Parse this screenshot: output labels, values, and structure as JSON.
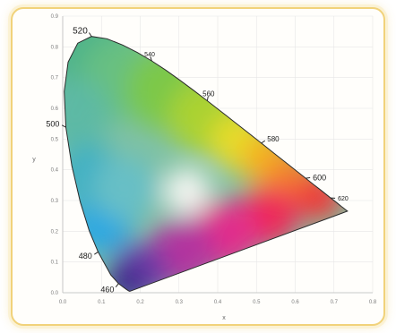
{
  "chart_data": {
    "type": "scatter",
    "title": "",
    "xlabel": "x",
    "ylabel": "y",
    "xlim": [
      0.0,
      0.8
    ],
    "ylim": [
      0.0,
      0.9
    ],
    "x_ticks": [
      "0.0",
      "0.1",
      "0.2",
      "0.3",
      "0.4",
      "0.5",
      "0.6",
      "0.7",
      "0.8"
    ],
    "y_ticks": [
      "0.0",
      "0.1",
      "0.2",
      "0.3",
      "0.4",
      "0.5",
      "0.6",
      "0.7",
      "0.8",
      "0.9"
    ],
    "grid": true,
    "series": [
      {
        "x": [
          0.1741,
          0.1738,
          0.1732,
          0.1726,
          0.1714,
          0.1689,
          0.1644,
          0.1566,
          0.144,
          0.1241,
          0.0913,
          0.0687,
          0.0454,
          0.0235,
          0.0082,
          0.0039,
          0.0139,
          0.0389,
          0.0743,
          0.1142,
          0.1547,
          0.1929,
          0.2296,
          0.2658,
          0.3016,
          0.3373,
          0.3731,
          0.4087,
          0.4441,
          0.4788,
          0.5125,
          0.5448,
          0.5752,
          0.6029,
          0.627,
          0.6482,
          0.6658,
          0.6801,
          0.6915,
          0.7006,
          0.7079,
          0.714,
          0.719,
          0.723,
          0.726,
          0.7283,
          0.73,
          0.7347
        ],
        "y": [
          0.005,
          0.0049,
          0.0048,
          0.0048,
          0.0051,
          0.0069,
          0.0109,
          0.0177,
          0.0297,
          0.0578,
          0.1327,
          0.2007,
          0.295,
          0.4127,
          0.5384,
          0.6548,
          0.7502,
          0.812,
          0.8338,
          0.8262,
          0.8059,
          0.7816,
          0.7543,
          0.7243,
          0.6923,
          0.6589,
          0.6245,
          0.5896,
          0.5547,
          0.5202,
          0.4866,
          0.4544,
          0.4242,
          0.3965,
          0.3725,
          0.3514,
          0.334,
          0.3197,
          0.3083,
          0.2993,
          0.292,
          0.2859,
          0.2809,
          0.277,
          0.274,
          0.2717,
          0.27,
          0.2653
        ]
      }
    ],
    "annotations": [
      {
        "text": "520",
        "x": 0.0743,
        "y": 0.8338
      },
      {
        "text": "540",
        "x": 0.2296,
        "y": 0.7543
      },
      {
        "text": "560",
        "x": 0.3731,
        "y": 0.6245
      },
      {
        "text": "580",
        "x": 0.5125,
        "y": 0.4866
      },
      {
        "text": "600",
        "x": 0.627,
        "y": 0.3725
      },
      {
        "text": "620",
        "x": 0.6915,
        "y": 0.3083
      },
      {
        "text": "500",
        "x": 0.0082,
        "y": 0.5384
      },
      {
        "text": "480",
        "x": 0.0913,
        "y": 0.1327
      },
      {
        "text": "460",
        "x": 0.144,
        "y": 0.0297
      }
    ]
  }
}
